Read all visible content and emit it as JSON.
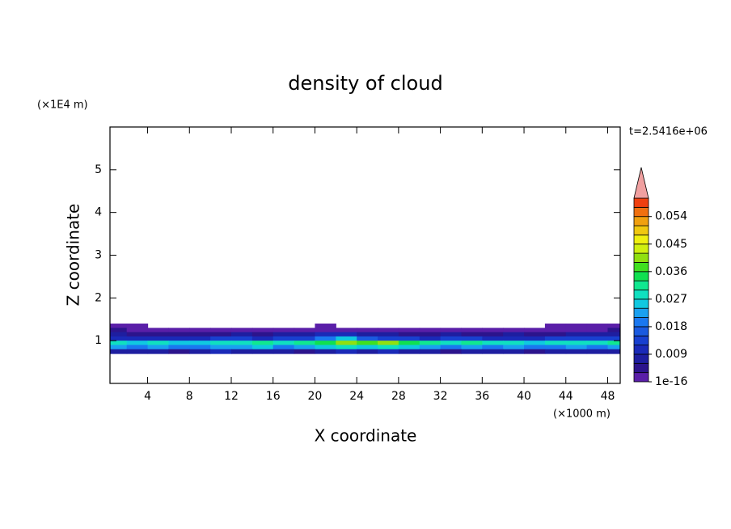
{
  "chart_data": {
    "type": "contour",
    "title": "density of cloud",
    "x_label": "X coordinate",
    "y_label": "Z coordinate",
    "x_unit": "(×1000 m)",
    "y_unit": "(×1E4 m)",
    "annotation": "t=2.5416e+06",
    "xlim": [
      0.4,
      49.2
    ],
    "xticks": [
      4,
      8,
      12,
      16,
      20,
      24,
      28,
      32,
      36,
      40,
      44,
      48
    ],
    "ylim": [
      0,
      6
    ],
    "yticks": [
      1,
      2,
      3,
      4,
      5
    ],
    "x": [
      1,
      3,
      5,
      7,
      9,
      11,
      13,
      15,
      17,
      19,
      21,
      23,
      25,
      27,
      29,
      31,
      33,
      35,
      37,
      39,
      41,
      43,
      45,
      47,
      49
    ],
    "z": [
      1.35,
      1.25,
      1.15,
      1.05,
      0.95,
      0.85,
      0.75
    ],
    "values": [
      [
        0.001,
        0.001,
        0,
        0,
        0,
        0,
        0,
        0,
        0,
        0,
        0.001,
        0,
        0,
        0,
        0,
        0,
        0,
        0,
        0,
        0,
        0,
        0.001,
        0.001,
        0.001,
        0.001
      ],
      [
        0.004,
        0.003,
        0.002,
        0.002,
        0.002,
        0.002,
        0.002,
        0.003,
        0.002,
        0.002,
        0.003,
        0.003,
        0.002,
        0.002,
        0.002,
        0.002,
        0.002,
        0.002,
        0.002,
        0.002,
        0.002,
        0.002,
        0.003,
        0.003,
        0.004
      ],
      [
        0.007,
        0.006,
        0.006,
        0.005,
        0.005,
        0.006,
        0.007,
        0.006,
        0.007,
        0.008,
        0.01,
        0.012,
        0.008,
        0.007,
        0.006,
        0.006,
        0.007,
        0.006,
        0.006,
        0.007,
        0.006,
        0.006,
        0.007,
        0.008,
        0.008
      ],
      [
        0.012,
        0.011,
        0.01,
        0.012,
        0.011,
        0.013,
        0.014,
        0.012,
        0.013,
        0.015,
        0.02,
        0.026,
        0.016,
        0.014,
        0.013,
        0.012,
        0.013,
        0.014,
        0.012,
        0.011,
        0.012,
        0.013,
        0.014,
        0.015,
        0.014
      ],
      [
        0.028,
        0.026,
        0.03,
        0.025,
        0.027,
        0.03,
        0.029,
        0.032,
        0.028,
        0.031,
        0.034,
        0.04,
        0.038,
        0.042,
        0.036,
        0.033,
        0.03,
        0.031,
        0.029,
        0.03,
        0.027,
        0.028,
        0.03,
        0.029,
        0.031
      ],
      [
        0.022,
        0.02,
        0.023,
        0.019,
        0.021,
        0.024,
        0.022,
        0.025,
        0.02,
        0.023,
        0.026,
        0.03,
        0.027,
        0.028,
        0.025,
        0.022,
        0.021,
        0.023,
        0.02,
        0.022,
        0.019,
        0.021,
        0.023,
        0.02,
        0.022
      ],
      [
        0.008,
        0.007,
        0.009,
        0.006,
        0.007,
        0.01,
        0.008,
        0.009,
        0.007,
        0.006,
        0.008,
        0.011,
        0.009,
        0.01,
        0.008,
        0.007,
        0.006,
        0.008,
        0.007,
        0.009,
        0.006,
        0.008,
        0.007,
        0.009,
        0.008
      ]
    ],
    "colorbar": {
      "clim": [
        1e-16,
        0.06
      ],
      "ticks": [
        1e-16,
        0.009,
        0.018,
        0.027,
        0.036,
        0.045,
        0.054
      ],
      "colors": [
        "#5a1fa8",
        "#2c148c",
        "#1e1ea0",
        "#1a2ab8",
        "#1840d0",
        "#1a5ae0",
        "#1a78f0",
        "#1aa0f0",
        "#10c8e0",
        "#10e0c0",
        "#10e890",
        "#10e050",
        "#40e020",
        "#90e010",
        "#d0f010",
        "#f0f010",
        "#f0c810",
        "#f0a010",
        "#f07010",
        "#f04010"
      ],
      "over_color": "#f0a0a0"
    }
  }
}
